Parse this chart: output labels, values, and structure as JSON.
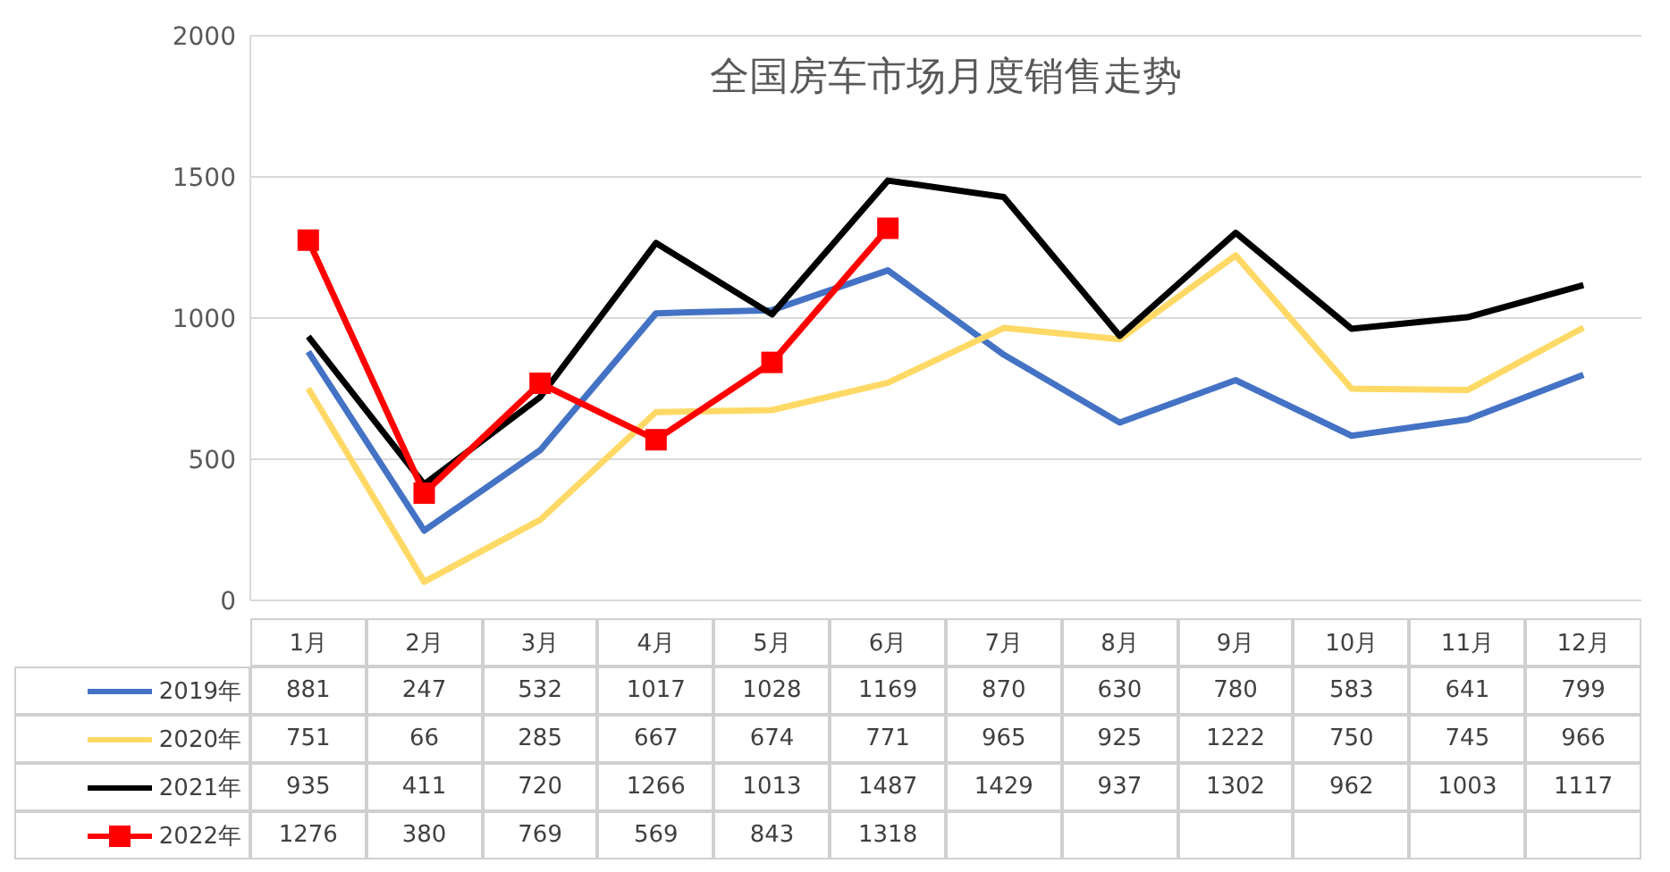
{
  "chart_data": {
    "type": "line",
    "title": "全国房车市场月度销售走势",
    "categories": [
      "1月",
      "2月",
      "3月",
      "4月",
      "5月",
      "6月",
      "7月",
      "8月",
      "9月",
      "10月",
      "11月",
      "12月"
    ],
    "series": [
      {
        "name": "2019年",
        "color": "#4472c4",
        "marker": "none",
        "values": [
          881,
          247,
          532,
          1017,
          1028,
          1169,
          870,
          630,
          780,
          583,
          641,
          799
        ]
      },
      {
        "name": "2020年",
        "color": "#ffd966",
        "marker": "none",
        "values": [
          751,
          66,
          285,
          667,
          674,
          771,
          965,
          925,
          1222,
          750,
          745,
          966
        ]
      },
      {
        "name": "2021年",
        "color": "#000000",
        "marker": "none",
        "values": [
          935,
          411,
          720,
          1266,
          1013,
          1487,
          1429,
          937,
          1302,
          962,
          1003,
          1117
        ]
      },
      {
        "name": "2022年",
        "color": "#ff0000",
        "marker": "square",
        "values": [
          1276,
          380,
          769,
          569,
          843,
          1318,
          null,
          null,
          null,
          null,
          null,
          null
        ]
      }
    ],
    "ylim": [
      0,
      2000
    ],
    "yticks": [
      0,
      500,
      1000,
      1500,
      2000
    ],
    "grid": "y",
    "legend": "bottom",
    "data_labels": true
  }
}
